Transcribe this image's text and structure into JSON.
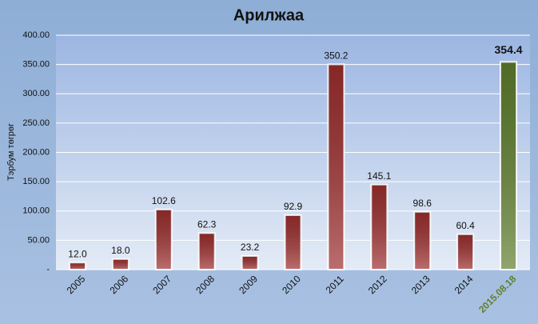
{
  "chart_data": {
    "type": "bar",
    "title": "Арилжаа",
    "y_label": "Тэрбум төгрөг",
    "categories": [
      "2005",
      "2006",
      "2007",
      "2008",
      "2009",
      "2010",
      "2011",
      "2012",
      "2013",
      "2014",
      "2015.08.18"
    ],
    "values": [
      12.0,
      18.0,
      102.6,
      62.3,
      23.2,
      92.9,
      350.2,
      145.1,
      98.6,
      60.4,
      354.4
    ],
    "value_labels": [
      "12.0",
      "18.0",
      "102.6",
      "62.3",
      "23.2",
      "92.9",
      "350.2",
      "145.1",
      "98.6",
      "60.4",
      "354.4"
    ],
    "colors": [
      "#9e2f2f",
      "#9e2f2f",
      "#9e2f2f",
      "#9e2f2f",
      "#9e2f2f",
      "#9e2f2f",
      "#9e2f2f",
      "#9e2f2f",
      "#9e2f2f",
      "#9e2f2f",
      "#5f7f2e"
    ],
    "ylim": [
      0,
      400
    ],
    "yticks": [
      {
        "value": 0,
        "label": "-"
      },
      {
        "value": 50,
        "label": "50.00"
      },
      {
        "value": 100,
        "label": "100.00"
      },
      {
        "value": 150,
        "label": "150.00"
      },
      {
        "value": 200,
        "label": "200.00"
      },
      {
        "value": 250,
        "label": "250.00"
      },
      {
        "value": 300,
        "label": "300.00"
      },
      {
        "value": 350,
        "label": "350.00"
      },
      {
        "value": 400,
        "label": "400.00"
      }
    ],
    "grid": true
  }
}
